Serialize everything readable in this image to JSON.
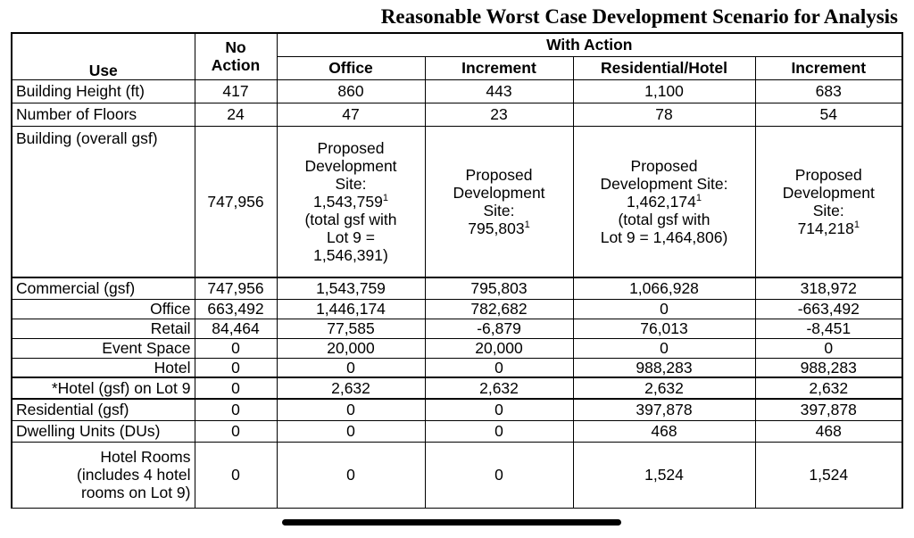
{
  "title": "Reasonable Worst Case Development Scenario for Analysis",
  "header": {
    "use": "Use",
    "no_action_line1": "No",
    "no_action_line2": "Action",
    "with_action": "With Action",
    "office": "Office",
    "increment1": "Increment",
    "residential_hotel": "Residential/Hotel",
    "increment2": "Increment"
  },
  "rows": {
    "height": {
      "label": "Building Height (ft)",
      "no_action": "417",
      "office": "860",
      "inc1": "443",
      "res": "1,100",
      "inc2": "683"
    },
    "floors": {
      "label": "Number of Floors",
      "no_action": "24",
      "office": "47",
      "inc1": "23",
      "res": "78",
      "inc2": "54"
    },
    "building": {
      "label": "Building (overall gsf)",
      "no_action": "747,956",
      "office_l1": "Proposed",
      "office_l2": "Development",
      "office_l3": "Site:",
      "office_l4": "1,543,759",
      "office_l5": "(total gsf with",
      "office_l6": "Lot 9 =",
      "office_l7": "1,546,391)",
      "inc1_l1": "Proposed",
      "inc1_l2": "Development",
      "inc1_l3": "Site:",
      "inc1_l4": "795,803",
      "res_l1": "Proposed",
      "res_l2": "Development Site:",
      "res_l3": "1,462,174",
      "res_l4": "(total gsf with",
      "res_l5": "Lot 9 = 1,464,806)",
      "inc2_l1": "Proposed",
      "inc2_l2": "Development",
      "inc2_l3": "Site:",
      "inc2_l4": "714,218",
      "footnote_mark": "1"
    },
    "commercial": {
      "label": "Commercial (gsf)",
      "no_action": "747,956",
      "office": "1,543,759",
      "inc1": "795,803",
      "res": "1,066,928",
      "inc2": "318,972"
    },
    "office": {
      "label": "Office",
      "no_action": "663,492",
      "office": "1,446,174",
      "inc1": "782,682",
      "res": "0",
      "inc2": "-663,492"
    },
    "retail": {
      "label": "Retail",
      "no_action": "84,464",
      "office": "77,585",
      "inc1": "-6,879",
      "res": "76,013",
      "inc2": "-8,451"
    },
    "event": {
      "label": "Event Space",
      "no_action": "0",
      "office": "20,000",
      "inc1": "20,000",
      "res": "0",
      "inc2": "0"
    },
    "hotel": {
      "label": "Hotel",
      "no_action": "0",
      "office": "0",
      "inc1": "0",
      "res": "988,283",
      "inc2": "988,283"
    },
    "hotel_lot9": {
      "label": "*Hotel (gsf) on Lot 9",
      "no_action": "0",
      "office": "2,632",
      "inc1": "2,632",
      "res": "2,632",
      "inc2": "2,632"
    },
    "residential": {
      "label": "Residential (gsf)",
      "no_action": "0",
      "office": "0",
      "inc1": "0",
      "res": "397,878",
      "inc2": "397,878"
    },
    "dus": {
      "label": "Dwelling Units (DUs)",
      "no_action": "0",
      "office": "0",
      "inc1": "0",
      "res": "468",
      "inc2": "468"
    },
    "rooms": {
      "label_l1": "Hotel Rooms",
      "label_l2": "(includes 4 hotel",
      "label_l3": "rooms on Lot 9)",
      "no_action": "0",
      "office": "0",
      "inc1": "0",
      "res": "1,524",
      "inc2": "1,524"
    }
  }
}
